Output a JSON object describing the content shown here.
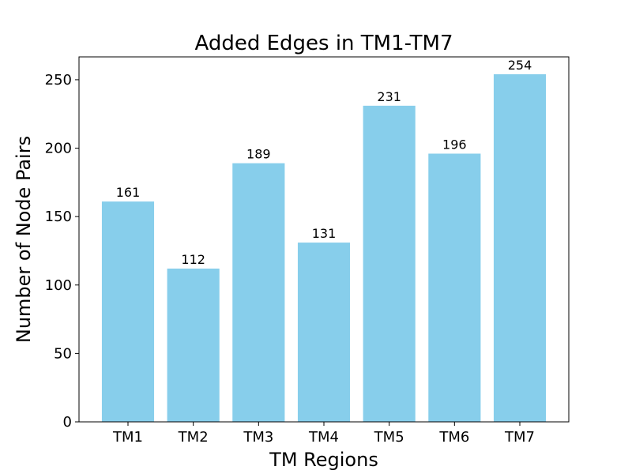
{
  "chart_data": {
    "type": "bar",
    "title": "Added Edges in TM1-TM7",
    "xlabel": "TM Regions",
    "ylabel": "Number of Node Pairs",
    "categories": [
      "TM1",
      "TM2",
      "TM3",
      "TM4",
      "TM5",
      "TM6",
      "TM7"
    ],
    "values": [
      161,
      112,
      189,
      131,
      231,
      196,
      254
    ],
    "data_labels": [
      "161",
      "112",
      "189",
      "131",
      "231",
      "196",
      "254"
    ],
    "yticks": [
      0,
      50,
      100,
      150,
      200,
      250
    ],
    "ytick_labels": [
      "0",
      "50",
      "100",
      "150",
      "200",
      "250"
    ],
    "ylim": [
      0,
      266.7
    ],
    "grid": false,
    "bar_color": "#87CEEB"
  }
}
